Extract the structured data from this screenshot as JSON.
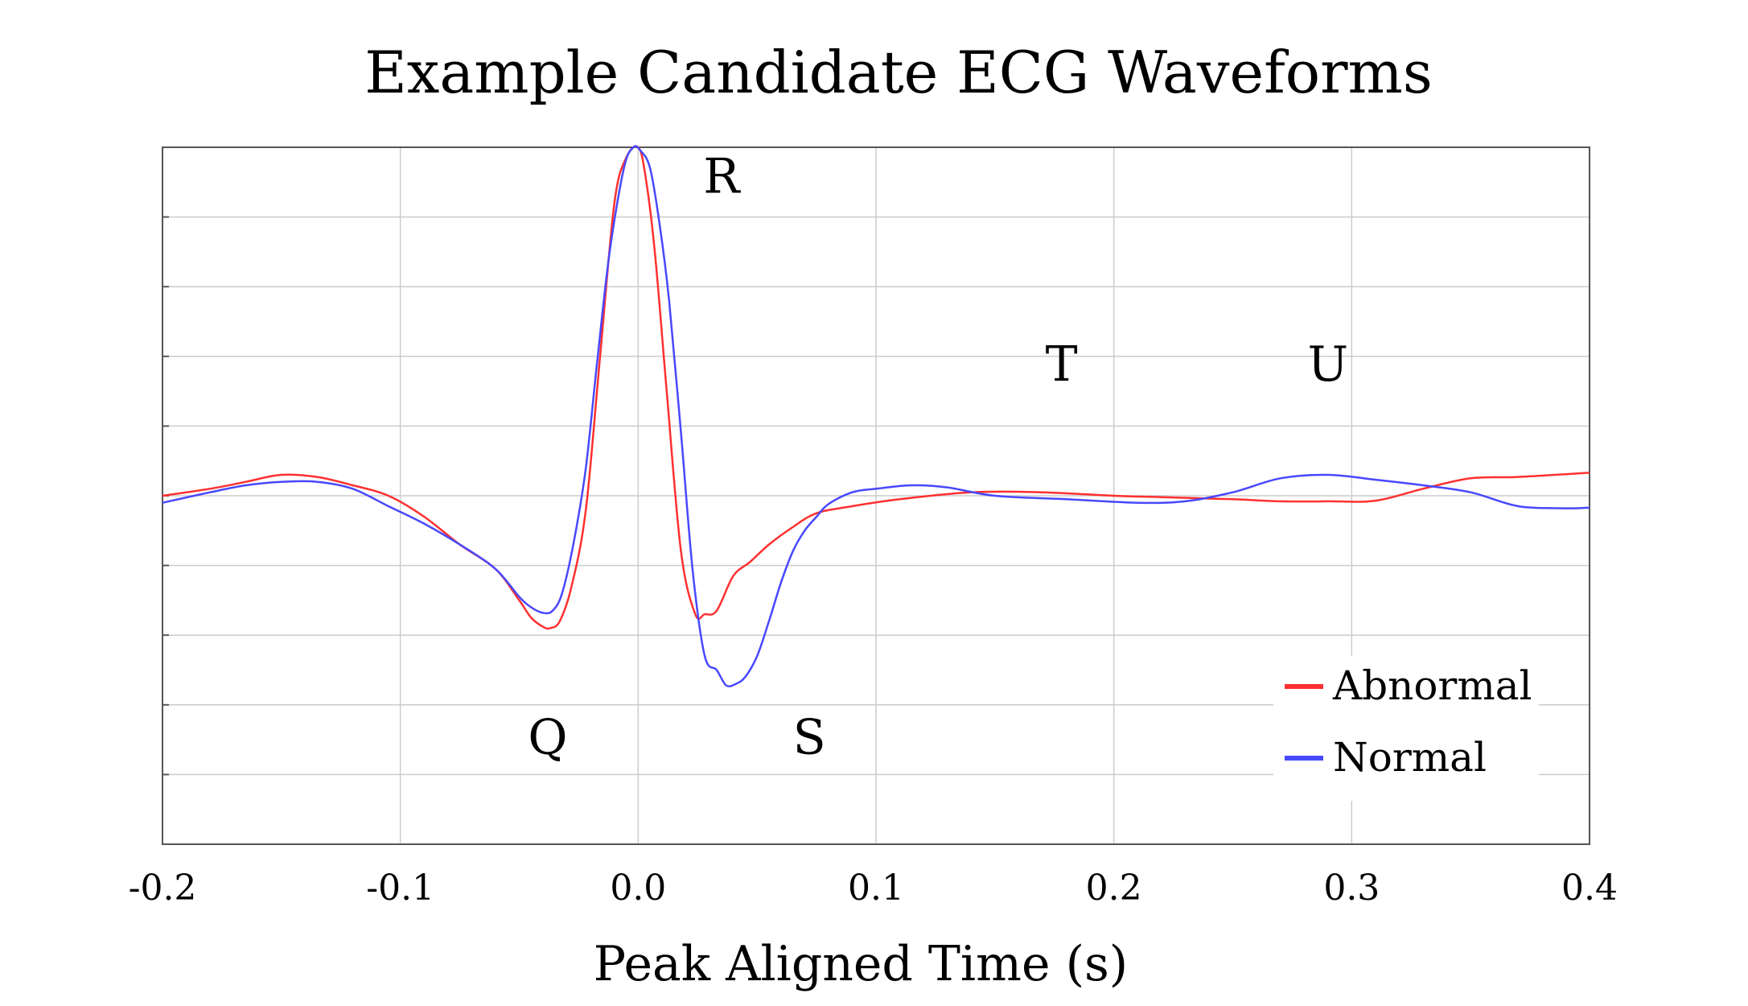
{
  "chart_data": {
    "type": "line",
    "title": "Example Candidate ECG Waveforms",
    "xlabel": "Peak Aligned Time (s)",
    "ylabel": "",
    "xlim": [
      -0.2,
      0.4
    ],
    "ylim": [
      -5,
      5
    ],
    "x_ticks": [
      "-0.2",
      "-0.1",
      "0.0",
      "0.1",
      "0.2",
      "0.3",
      "0.4"
    ],
    "grid": true,
    "legend_position": "bottom-right",
    "annotations": [
      {
        "text": "R",
        "x": 0.035,
        "y": 4.35
      },
      {
        "text": "T",
        "x": 0.178,
        "y": 1.65
      },
      {
        "text": "U",
        "x": 0.29,
        "y": 1.65
      },
      {
        "text": "Q",
        "x": -0.038,
        "y": -3.7
      },
      {
        "text": "S",
        "x": 0.072,
        "y": -3.7
      }
    ],
    "series": [
      {
        "name": "Abnormal",
        "color": "#ff3030",
        "x": [
          -0.2,
          -0.18,
          -0.165,
          -0.15,
          -0.135,
          -0.12,
          -0.105,
          -0.09,
          -0.075,
          -0.06,
          -0.05,
          -0.045,
          -0.04,
          -0.037,
          -0.033,
          -0.028,
          -0.022,
          -0.016,
          -0.01,
          -0.005,
          0.0,
          0.003,
          0.007,
          0.012,
          0.018,
          0.024,
          0.028,
          0.033,
          0.04,
          0.047,
          0.055,
          0.065,
          0.075,
          0.09,
          0.11,
          0.14,
          0.17,
          0.2,
          0.22,
          0.25,
          0.27,
          0.29,
          0.31,
          0.33,
          0.35,
          0.37,
          0.4
        ],
        "values": [
          0.0,
          0.1,
          0.2,
          0.3,
          0.27,
          0.15,
          0.0,
          -0.3,
          -0.7,
          -1.05,
          -1.5,
          -1.75,
          -1.88,
          -1.9,
          -1.8,
          -1.3,
          -0.2,
          2.0,
          4.2,
          4.85,
          5.0,
          4.6,
          3.5,
          1.5,
          -0.8,
          -1.7,
          -1.7,
          -1.65,
          -1.15,
          -0.95,
          -0.7,
          -0.45,
          -0.25,
          -0.15,
          -0.05,
          0.05,
          0.05,
          0.0,
          -0.02,
          -0.05,
          -0.08,
          -0.08,
          -0.07,
          0.1,
          0.25,
          0.27,
          0.33
        ]
      },
      {
        "name": "Normal",
        "color": "#4848ff",
        "x": [
          -0.2,
          -0.18,
          -0.165,
          -0.15,
          -0.135,
          -0.12,
          -0.105,
          -0.09,
          -0.075,
          -0.06,
          -0.05,
          -0.045,
          -0.04,
          -0.036,
          -0.032,
          -0.027,
          -0.022,
          -0.017,
          -0.012,
          -0.006,
          -0.002,
          0.001,
          0.005,
          0.009,
          0.013,
          0.018,
          0.023,
          0.028,
          0.033,
          0.037,
          0.041,
          0.045,
          0.05,
          0.055,
          0.06,
          0.065,
          0.07,
          0.075,
          0.08,
          0.09,
          0.1,
          0.115,
          0.13,
          0.15,
          0.18,
          0.21,
          0.23,
          0.25,
          0.27,
          0.29,
          0.31,
          0.33,
          0.35,
          0.37,
          0.39,
          0.4
        ],
        "values": [
          -0.1,
          0.05,
          0.15,
          0.2,
          0.2,
          0.1,
          -0.15,
          -0.4,
          -0.7,
          -1.05,
          -1.45,
          -1.6,
          -1.68,
          -1.65,
          -1.4,
          -0.65,
          0.4,
          2.0,
          3.5,
          4.7,
          5.0,
          4.95,
          4.7,
          3.9,
          2.8,
          0.9,
          -1.1,
          -2.3,
          -2.5,
          -2.72,
          -2.7,
          -2.6,
          -2.3,
          -1.8,
          -1.25,
          -0.8,
          -0.5,
          -0.3,
          -0.12,
          0.05,
          0.1,
          0.15,
          0.12,
          0.0,
          -0.05,
          -0.1,
          -0.08,
          0.05,
          0.25,
          0.3,
          0.23,
          0.15,
          0.05,
          -0.15,
          -0.18,
          -0.17
        ]
      }
    ]
  }
}
